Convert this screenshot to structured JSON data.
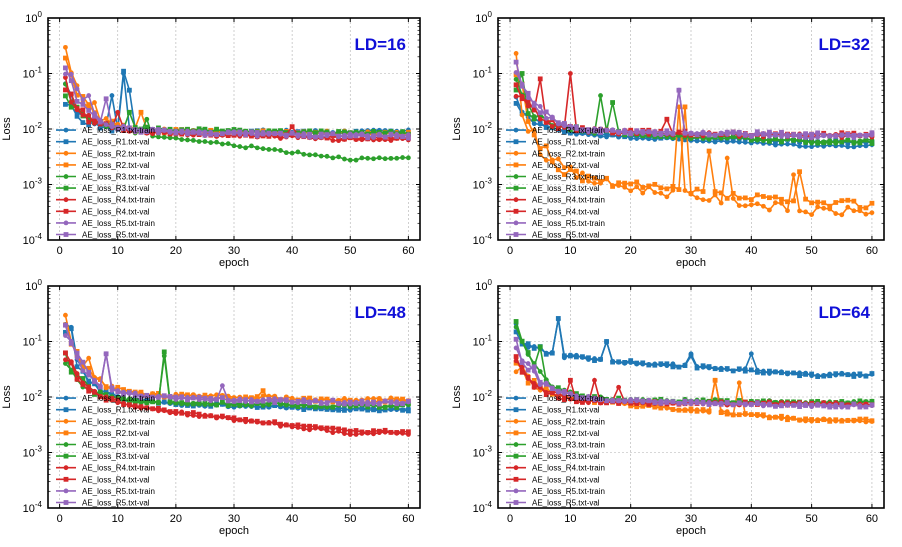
{
  "figure": {
    "layout": "2x2 grid of log-scale line charts"
  },
  "colors": {
    "R1": "#1f77b4",
    "R2": "#ff7f0e",
    "R3": "#2ca02c",
    "R4": "#d62728",
    "R5": "#9467bd",
    "ld_label": "#1010d8",
    "grid": "#b0b0b0"
  },
  "chart_data": [
    {
      "type": "line",
      "title": "LD=16",
      "xlabel": "epoch",
      "ylabel": "Loss",
      "yscale": "log",
      "xlim": [
        -2,
        62
      ],
      "ylim": [
        0.0001,
        1
      ],
      "xticks": [
        "0",
        "10",
        "20",
        "30",
        "40",
        "50",
        "60"
      ],
      "yticks": [
        "10^-4",
        "10^-3",
        "10^-2",
        "10^-1",
        "10^0"
      ],
      "grid": true,
      "legend": "left-middle",
      "series": [
        {
          "name": "AE_loss_R1.txt-train",
          "color_key": "R1",
          "marker": "circle",
          "profile": {
            "start": 0.05,
            "level": 0.009,
            "end": 0.009,
            "spikes": [
              [
                9,
                0.04
              ],
              [
                11,
                0.1
              ]
            ],
            "noise": 0.15
          }
        },
        {
          "name": "AE_loss_R1.txt-val",
          "color_key": "R1",
          "marker": "square",
          "profile": {
            "start": 0.03,
            "level": 0.009,
            "end": 0.0085,
            "spikes": [
              [
                11,
                0.11
              ],
              [
                12,
                0.05
              ]
            ],
            "noise": 0.18
          }
        },
        {
          "name": "AE_loss_R2.txt-train",
          "color_key": "R2",
          "marker": "circle",
          "profile": {
            "start": 0.2,
            "level": 0.009,
            "end": 0.0085,
            "spikes": [
              [
                4,
                0.03
              ],
              [
                6,
                0.03
              ]
            ],
            "noise": 0.2
          }
        },
        {
          "name": "AE_loss_R2.txt-val",
          "color_key": "R2",
          "marker": "square",
          "profile": {
            "start": 0.2,
            "level": 0.009,
            "end": 0.0085,
            "spikes": [
              [
                14,
                0.02
              ]
            ],
            "noise": 0.2
          }
        },
        {
          "name": "AE_loss_R3.txt-train",
          "color_key": "R3",
          "marker": "circle",
          "profile": {
            "start": 0.05,
            "level": 0.009,
            "end": 0.0029,
            "spikes": [
              [
                15,
                0.015
              ]
            ],
            "noise": 0.12
          }
        },
        {
          "name": "AE_loss_R3.txt-val",
          "color_key": "R3",
          "marker": "square",
          "profile": {
            "start": 0.04,
            "level": 0.01,
            "end": 0.0085,
            "spikes": [
              [
                12,
                0.02
              ]
            ],
            "noise": 0.15
          }
        },
        {
          "name": "AE_loss_R4.txt-train",
          "color_key": "R4",
          "marker": "circle",
          "profile": {
            "start": 0.06,
            "level": 0.009,
            "end": 0.0065,
            "spikes": [
              [
                10,
                0.02
              ]
            ],
            "noise": 0.15
          }
        },
        {
          "name": "AE_loss_R4.txt-val",
          "color_key": "R4",
          "marker": "square",
          "profile": {
            "start": 0.05,
            "level": 0.009,
            "end": 0.007,
            "spikes": [
              [
                40,
                0.011
              ]
            ],
            "noise": 0.15
          }
        },
        {
          "name": "AE_loss_R5.txt-train",
          "color_key": "R5",
          "marker": "circle",
          "profile": {
            "start": 0.15,
            "level": 0.009,
            "end": 0.0075,
            "spikes": [
              [
                5,
                0.04
              ]
            ],
            "noise": 0.2
          }
        },
        {
          "name": "AE_loss_R5.txt-val",
          "color_key": "R5",
          "marker": "square",
          "profile": {
            "start": 0.12,
            "level": 0.009,
            "end": 0.0075,
            "spikes": [
              [
                8,
                0.035
              ]
            ],
            "noise": 0.2
          }
        }
      ]
    },
    {
      "type": "line",
      "title": "LD=32",
      "xlabel": "epoch",
      "ylabel": "Loss",
      "yscale": "log",
      "xlim": [
        -2,
        62
      ],
      "ylim": [
        0.0001,
        1
      ],
      "xticks": [
        "0",
        "10",
        "20",
        "30",
        "40",
        "50",
        "60"
      ],
      "yticks": [
        "10^-4",
        "10^-3",
        "10^-2",
        "10^-1",
        "10^0"
      ],
      "grid": true,
      "legend": "left-middle",
      "series": [
        {
          "name": "AE_loss_R1.txt-train",
          "color_key": "R1",
          "marker": "circle",
          "profile": {
            "start": 0.03,
            "level": 0.008,
            "end": 0.005,
            "spikes": [],
            "noise": 0.12
          }
        },
        {
          "name": "AE_loss_R1.txt-val",
          "color_key": "R1",
          "marker": "square",
          "profile": {
            "start": 0.03,
            "level": 0.008,
            "end": 0.006,
            "spikes": [],
            "noise": 0.12
          }
        },
        {
          "name": "AE_loss_R2.txt-train",
          "color_key": "R2",
          "marker": "circle",
          "profile": {
            "start": 0.1,
            "level": 0.0012,
            "end": 0.00033,
            "spikes": [
              [
                28,
                0.025
              ],
              [
                36,
                0.003
              ],
              [
                47,
                0.0015
              ]
            ],
            "noise": 0.4
          }
        },
        {
          "name": "AE_loss_R2.txt-val",
          "color_key": "R2",
          "marker": "square",
          "profile": {
            "start": 0.1,
            "level": 0.0012,
            "end": 0.00045,
            "spikes": [
              [
                29,
                0.025
              ],
              [
                33,
                0.004
              ],
              [
                48,
                0.0017
              ]
            ],
            "noise": 0.4
          }
        },
        {
          "name": "AE_loss_R3.txt-train",
          "color_key": "R3",
          "marker": "circle",
          "profile": {
            "start": 0.05,
            "level": 0.009,
            "end": 0.006,
            "spikes": [
              [
                15,
                0.04
              ]
            ],
            "noise": 0.2
          }
        },
        {
          "name": "AE_loss_R3.txt-val",
          "color_key": "R3",
          "marker": "square",
          "profile": {
            "start": 0.05,
            "level": 0.009,
            "end": 0.006,
            "spikes": [
              [
                2,
                0.1
              ],
              [
                17,
                0.03
              ]
            ],
            "noise": 0.2
          }
        },
        {
          "name": "AE_loss_R4.txt-train",
          "color_key": "R4",
          "marker": "circle",
          "profile": {
            "start": 0.06,
            "level": 0.009,
            "end": 0.0075,
            "spikes": [
              [
                10,
                0.1
              ]
            ],
            "noise": 0.2
          }
        },
        {
          "name": "AE_loss_R4.txt-val",
          "color_key": "R4",
          "marker": "square",
          "profile": {
            "start": 0.06,
            "level": 0.009,
            "end": 0.008,
            "spikes": [
              [
                5,
                0.08
              ],
              [
                26,
                0.015
              ]
            ],
            "noise": 0.2
          }
        },
        {
          "name": "AE_loss_R5.txt-train",
          "color_key": "R5",
          "marker": "circle",
          "profile": {
            "start": 0.15,
            "level": 0.009,
            "end": 0.0075,
            "spikes": [
              [
                28,
                0.05
              ]
            ],
            "noise": 0.18
          }
        },
        {
          "name": "AE_loss_R5.txt-val",
          "color_key": "R5",
          "marker": "square",
          "profile": {
            "start": 0.15,
            "level": 0.009,
            "end": 0.008,
            "spikes": [
              [
                28,
                0.05
              ]
            ],
            "noise": 0.18
          }
        }
      ]
    },
    {
      "type": "line",
      "title": "LD=48",
      "xlabel": "epoch",
      "ylabel": "Loss",
      "yscale": "log",
      "xlim": [
        -2,
        62
      ],
      "ylim": [
        0.0001,
        1
      ],
      "xticks": [
        "0",
        "10",
        "20",
        "30",
        "40",
        "50",
        "60"
      ],
      "yticks": [
        "10^-4",
        "10^-3",
        "10^-2",
        "10^-1",
        "10^0"
      ],
      "grid": true,
      "legend": "left-middle",
      "series": [
        {
          "name": "AE_loss_R1.txt-train",
          "color_key": "R1",
          "marker": "circle",
          "profile": {
            "start": 0.15,
            "level": 0.008,
            "end": 0.006,
            "spikes": [
              [
                2,
                0.18
              ]
            ],
            "noise": 0.15
          }
        },
        {
          "name": "AE_loss_R1.txt-val",
          "color_key": "R1",
          "marker": "square",
          "profile": {
            "start": 0.15,
            "level": 0.008,
            "end": 0.006,
            "spikes": [
              [
                2,
                0.17
              ]
            ],
            "noise": 0.15
          }
        },
        {
          "name": "AE_loss_R2.txt-train",
          "color_key": "R2",
          "marker": "circle",
          "profile": {
            "start": 0.2,
            "level": 0.011,
            "end": 0.009,
            "spikes": [
              [
                5,
                0.05
              ]
            ],
            "noise": 0.18
          }
        },
        {
          "name": "AE_loss_R2.txt-val",
          "color_key": "R2",
          "marker": "square",
          "profile": {
            "start": 0.2,
            "level": 0.011,
            "end": 0.0085,
            "spikes": [
              [
                35,
                0.013
              ]
            ],
            "noise": 0.18
          }
        },
        {
          "name": "AE_loss_R3.txt-train",
          "color_key": "R3",
          "marker": "circle",
          "profile": {
            "start": 0.06,
            "level": 0.008,
            "end": 0.007,
            "spikes": [
              [
                18,
                0.055
              ]
            ],
            "noise": 0.18
          }
        },
        {
          "name": "AE_loss_R3.txt-val",
          "color_key": "R3",
          "marker": "square",
          "profile": {
            "start": 0.06,
            "level": 0.008,
            "end": 0.007,
            "spikes": [
              [
                18,
                0.065
              ]
            ],
            "noise": 0.18
          }
        },
        {
          "name": "AE_loss_R4.txt-train",
          "color_key": "R4",
          "marker": "circle",
          "profile": {
            "start": 0.06,
            "level": 0.007,
            "end": 0.0022,
            "spikes": [],
            "noise": 0.12
          }
        },
        {
          "name": "AE_loss_R4.txt-val",
          "color_key": "R4",
          "marker": "square",
          "profile": {
            "start": 0.06,
            "level": 0.007,
            "end": 0.0024,
            "spikes": [],
            "noise": 0.12
          }
        },
        {
          "name": "AE_loss_R5.txt-train",
          "color_key": "R5",
          "marker": "circle",
          "profile": {
            "start": 0.18,
            "level": 0.01,
            "end": 0.008,
            "spikes": [
              [
                8,
                0.06
              ],
              [
                28,
                0.016
              ]
            ],
            "noise": 0.18
          }
        },
        {
          "name": "AE_loss_R5.txt-val",
          "color_key": "R5",
          "marker": "square",
          "profile": {
            "start": 0.18,
            "level": 0.01,
            "end": 0.008,
            "spikes": [
              [
                8,
                0.06
              ]
            ],
            "noise": 0.18
          }
        }
      ]
    },
    {
      "type": "line",
      "title": "LD=64",
      "xlabel": "epoch",
      "ylabel": "Loss",
      "yscale": "log",
      "xlim": [
        -2,
        62
      ],
      "ylim": [
        0.0001,
        1
      ],
      "xticks": [
        "0",
        "10",
        "20",
        "30",
        "40",
        "50",
        "60"
      ],
      "yticks": [
        "10^-4",
        "10^-3",
        "10^-2",
        "10^-1",
        "10^0"
      ],
      "grid": true,
      "legend": "left-middle",
      "series": [
        {
          "name": "AE_loss_R1.txt-train",
          "color_key": "R1",
          "marker": "circle",
          "profile": {
            "start": 0.15,
            "level": 0.05,
            "end": 0.025,
            "spikes": [
              [
                8,
                0.25
              ],
              [
                16,
                0.1
              ],
              [
                30,
                0.06
              ],
              [
                40,
                0.06
              ]
            ],
            "noise": 0.15
          }
        },
        {
          "name": "AE_loss_R1.txt-val",
          "color_key": "R1",
          "marker": "square",
          "profile": {
            "start": 0.15,
            "level": 0.05,
            "end": 0.025,
            "spikes": [
              [
                8,
                0.26
              ],
              [
                16,
                0.1
              ],
              [
                30,
                0.055
              ]
            ],
            "noise": 0.15
          }
        },
        {
          "name": "AE_loss_R2.txt-train",
          "color_key": "R2",
          "marker": "circle",
          "profile": {
            "start": 0.04,
            "level": 0.009,
            "end": 0.0038,
            "spikes": [
              [
                34,
                0.02
              ],
              [
                38,
                0.018
              ]
            ],
            "noise": 0.15
          }
        },
        {
          "name": "AE_loss_R2.txt-val",
          "color_key": "R2",
          "marker": "square",
          "profile": {
            "start": 0.04,
            "level": 0.009,
            "end": 0.0038,
            "spikes": [
              [
                34,
                0.02
              ]
            ],
            "noise": 0.15
          }
        },
        {
          "name": "AE_loss_R3.txt-train",
          "color_key": "R3",
          "marker": "circle",
          "profile": {
            "start": 0.25,
            "level": 0.009,
            "end": 0.008,
            "spikes": [
              [
                2,
                0.1
              ]
            ],
            "noise": 0.15
          }
        },
        {
          "name": "AE_loss_R3.txt-val",
          "color_key": "R3",
          "marker": "square",
          "profile": {
            "start": 0.22,
            "level": 0.009,
            "end": 0.008,
            "spikes": [
              [
                5,
                0.08
              ]
            ],
            "noise": 0.15
          }
        },
        {
          "name": "AE_loss_R4.txt-train",
          "color_key": "R4",
          "marker": "circle",
          "profile": {
            "start": 0.06,
            "level": 0.008,
            "end": 0.0075,
            "spikes": [
              [
                14,
                0.02
              ],
              [
                18,
                0.015
              ]
            ],
            "noise": 0.15
          }
        },
        {
          "name": "AE_loss_R4.txt-val",
          "color_key": "R4",
          "marker": "square",
          "profile": {
            "start": 0.05,
            "level": 0.008,
            "end": 0.0075,
            "spikes": [
              [
                10,
                0.02
              ]
            ],
            "noise": 0.15
          }
        },
        {
          "name": "AE_loss_R5.txt-train",
          "color_key": "R5",
          "marker": "circle",
          "profile": {
            "start": 0.1,
            "level": 0.009,
            "end": 0.007,
            "spikes": [
              [
                3,
                0.04
              ]
            ],
            "noise": 0.15
          }
        },
        {
          "name": "AE_loss_R5.txt-val",
          "color_key": "R5",
          "marker": "square",
          "profile": {
            "start": 0.1,
            "level": 0.009,
            "end": 0.007,
            "spikes": [
              [
                4,
                0.035
              ]
            ],
            "noise": 0.15
          }
        }
      ]
    }
  ]
}
